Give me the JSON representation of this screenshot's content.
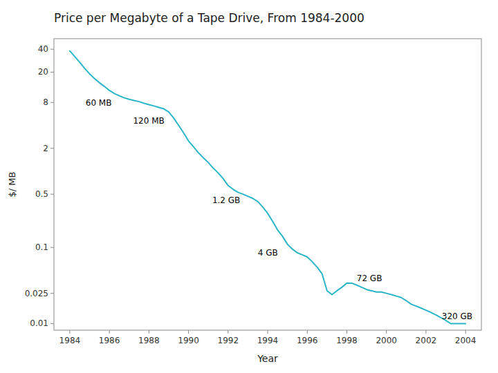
{
  "chart_data": {
    "type": "line",
    "title": "Price per Megabyte of a Tape Drive, From 1984-2000",
    "x_label": "Year",
    "y_label": "$/ MB",
    "log": "y",
    "grid": false,
    "xlim": [
      1983.2,
      2004.8
    ],
    "ylim": [
      0.0082,
      55.0
    ],
    "xticks": [
      1984,
      1986,
      1988,
      1990,
      1992,
      1994,
      1996,
      1998,
      2000,
      2002,
      2004
    ],
    "yticks": [
      40,
      20,
      8,
      2,
      0.5,
      0.1,
      0.025,
      0.01
    ],
    "annotations": [
      {
        "text": "60 MB",
        "x": 1984.8,
        "y": 7.2
      },
      {
        "text": "120 MB",
        "x": 1987.2,
        "y": 4.2
      },
      {
        "text": "1.2 GB",
        "x": 1991.2,
        "y": 0.38
      },
      {
        "text": "4 GB",
        "x": 1993.5,
        "y": 0.078
      },
      {
        "text": "72 GB",
        "x": 1998.5,
        "y": 0.036
      },
      {
        "text": "320 GB",
        "x": 2002.8,
        "y": 0.0115
      }
    ],
    "x": [
      1984,
      1984.25,
      1984.5,
      1984.75,
      1985,
      1985.25,
      1985.5,
      1985.75,
      1986,
      1986.25,
      1986.5,
      1986.75,
      1987,
      1987.25,
      1987.5,
      1987.75,
      1988,
      1988.25,
      1988.5,
      1988.75,
      1989,
      1989.25,
      1989.5,
      1989.75,
      1990,
      1990.25,
      1990.5,
      1990.75,
      1991,
      1991.25,
      1991.5,
      1991.75,
      1992,
      1992.25,
      1992.5,
      1992.75,
      1993,
      1993.25,
      1993.5,
      1993.75,
      1994,
      1994.25,
      1994.5,
      1994.75,
      1995,
      1995.25,
      1995.5,
      1995.75,
      1996,
      1996.25,
      1996.5,
      1996.75,
      1997,
      1997.25,
      1997.5,
      1997.75,
      1998,
      1998.25,
      1998.5,
      1998.75,
      1999,
      1999.25,
      1999.5,
      1999.75,
      2000,
      2000.25,
      2000.5,
      2000.75,
      2001,
      2001.25,
      2001.5,
      2001.75,
      2002,
      2002.25,
      2002.5,
      2002.75,
      2003,
      2003.25,
      2003.5,
      2003.75,
      2004
    ],
    "series": [
      {
        "color": "#29b6c8",
        "values": [
          38.0,
          32.0,
          27.0,
          22.5,
          19.0,
          16.5,
          14.5,
          13.0,
          11.5,
          10.5,
          9.8,
          9.2,
          8.8,
          8.5,
          8.2,
          7.8,
          7.5,
          7.2,
          6.9,
          6.6,
          6.0,
          5.0,
          4.0,
          3.2,
          2.5,
          2.1,
          1.75,
          1.5,
          1.3,
          1.1,
          0.95,
          0.8,
          0.65,
          0.58,
          0.53,
          0.5,
          0.47,
          0.44,
          0.4,
          0.34,
          0.28,
          0.22,
          0.17,
          0.14,
          0.11,
          0.095,
          0.085,
          0.08,
          0.075,
          0.065,
          0.055,
          0.045,
          0.027,
          0.024,
          0.027,
          0.03,
          0.034,
          0.034,
          0.032,
          0.03,
          0.028,
          0.027,
          0.026,
          0.026,
          0.025,
          0.024,
          0.023,
          0.022,
          0.02,
          0.018,
          0.017,
          0.016,
          0.015,
          0.014,
          0.013,
          0.012,
          0.011,
          0.01,
          0.01,
          0.01,
          0.01
        ]
      }
    ]
  }
}
